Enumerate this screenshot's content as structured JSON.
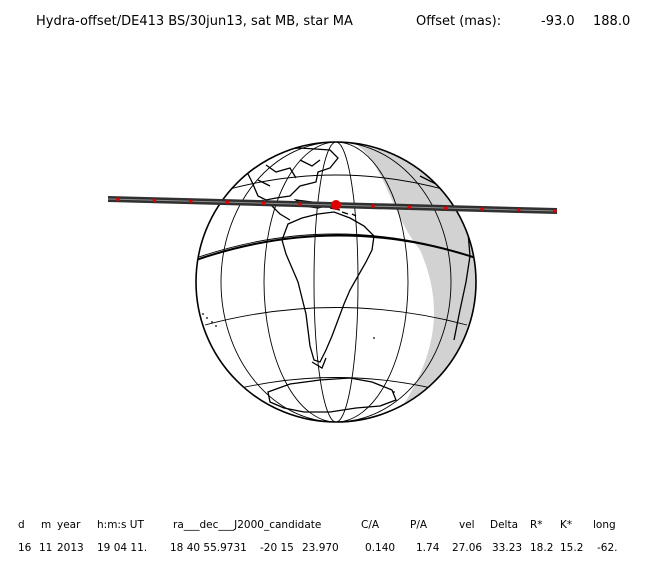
{
  "title": "Hydra-offset/DE413 BS/30jun13, sat MB, star MA",
  "offset_label": "Offset (mas):",
  "offset_values": [
    "-93.0",
    "188.0"
  ],
  "table": {
    "headers": [
      "d",
      "m",
      "year",
      "h:m:s UT",
      "ra___dec___J2000_candidate",
      "C/A",
      "P/A",
      "vel",
      "Delta",
      "R*",
      "K*",
      "long"
    ],
    "values": [
      "16",
      "11",
      "2013",
      "19 04 11.",
      "18 40 55.9731",
      "-20 15",
      "23.970",
      "0.140",
      "1.74",
      "27.06",
      "33.23",
      "18.2",
      "15.2",
      "-62."
    ]
  },
  "colors": {
    "track": "#303030",
    "event_marker": "#e00000",
    "night_shade": "#d2d2d2"
  }
}
